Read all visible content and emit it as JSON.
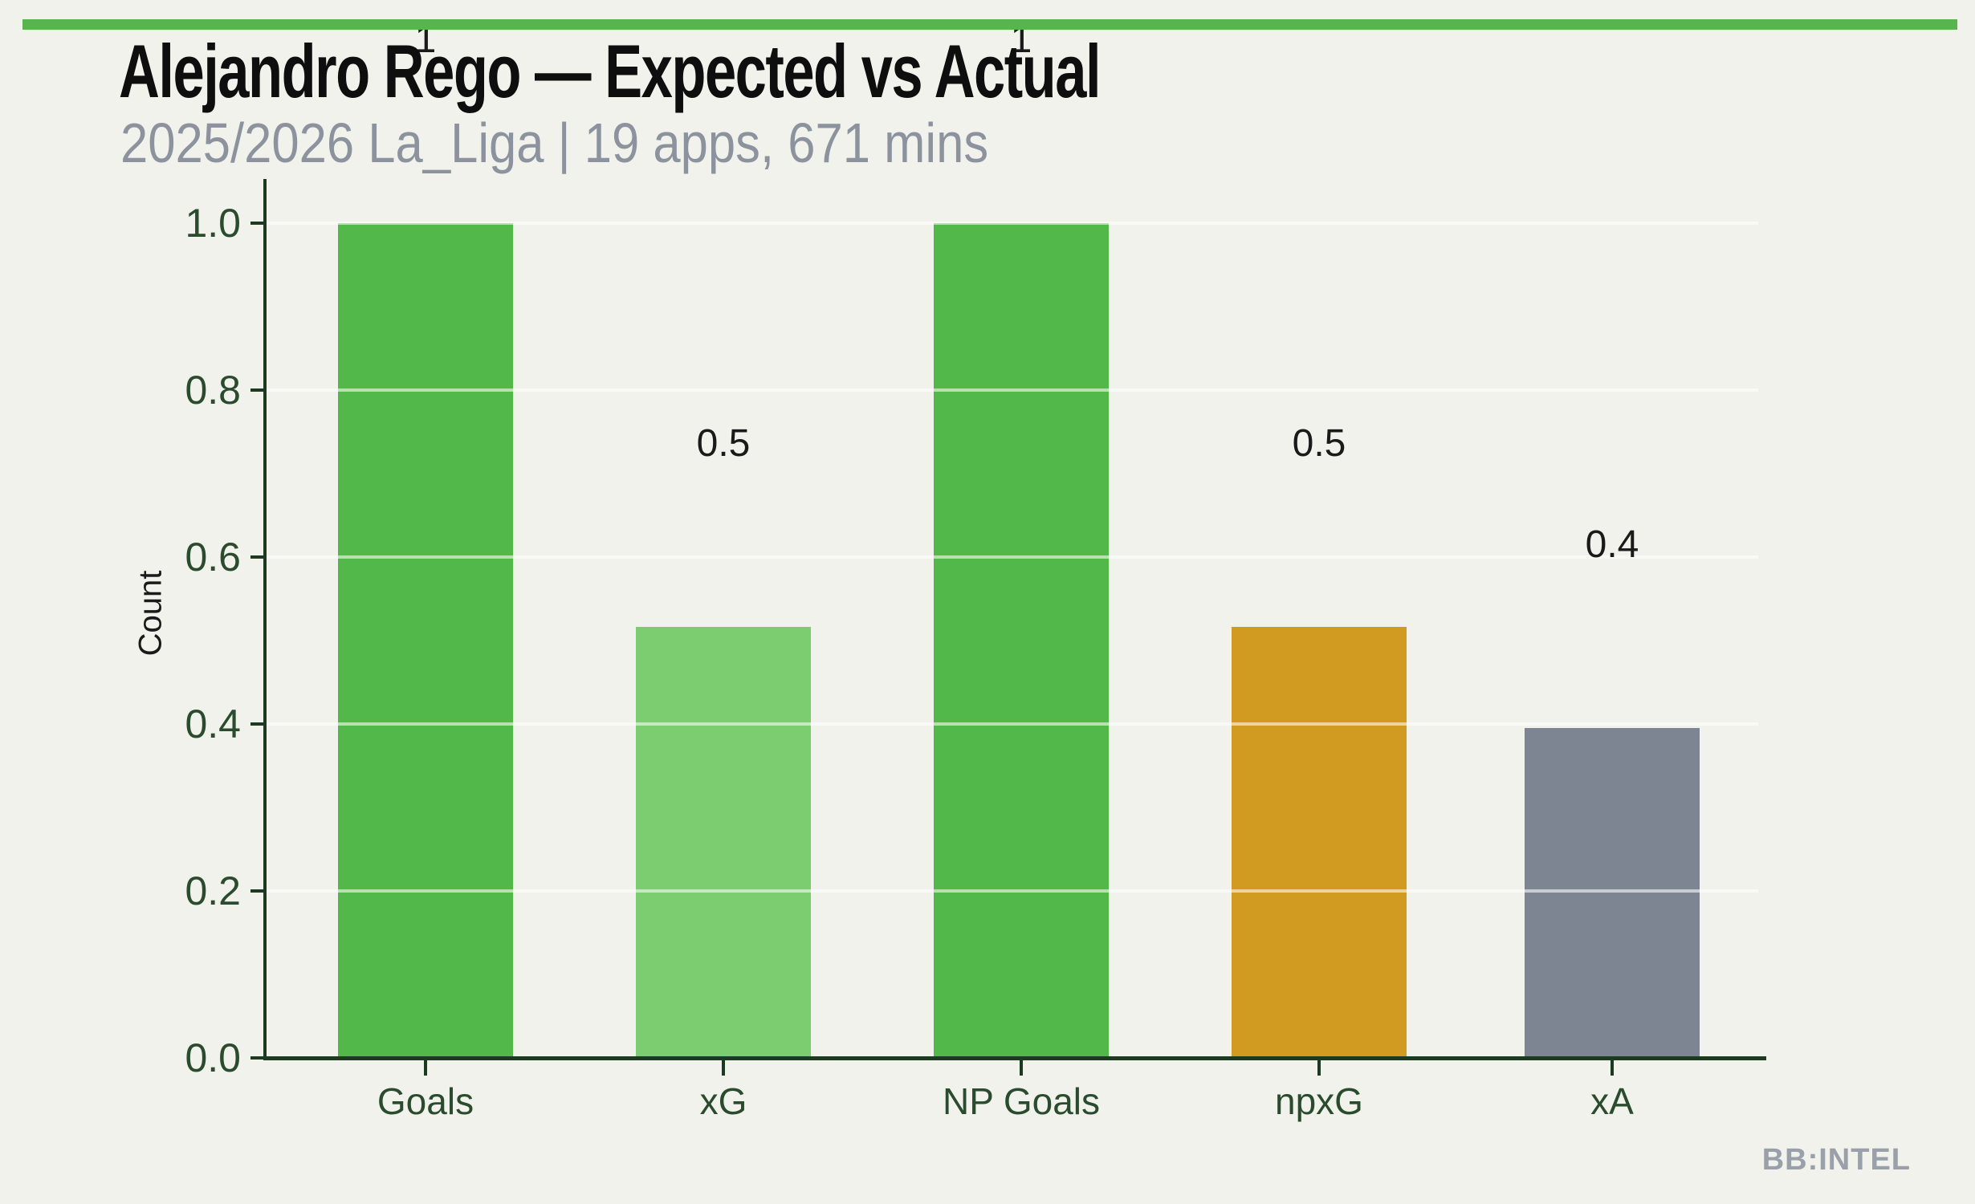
{
  "header": {
    "title": "Alejandro Rego — Expected vs Actual",
    "subtitle": "2025/2026 La_Liga | 19 apps, 671 mins"
  },
  "watermark": "BB:INTEL",
  "colors": {
    "background": "#f1f2eb",
    "top_stripe": "#58b54e",
    "axis": "#1c3a20",
    "tick_label": "#2a4b2e",
    "value_label": "#1a1a1a",
    "subtitle_gray": "#8d939e",
    "watermark_gray": "#9aa0aa",
    "gridline": "rgba(255,255,255,0.58)"
  },
  "chart_data": {
    "type": "bar",
    "title": "Alejandro Rego — Expected vs Actual",
    "subtitle": "2025/2026 La_Liga | 19 apps, 671 mins",
    "categories": [
      "Goals",
      "xG",
      "NP Goals",
      "npxG",
      "xA"
    ],
    "values": [
      1.0,
      0.516,
      1.0,
      0.516,
      0.395
    ],
    "bar_labels": [
      "1",
      "0.5",
      "1",
      "0.5",
      "0.4"
    ],
    "bar_colors": [
      "#53b84a",
      "#7ccd6f",
      "#53b84a",
      "#d19a21",
      "#7e8592"
    ],
    "xlabel": "",
    "ylabel": "Count",
    "ylim": [
      0.0,
      1.0
    ],
    "ytick_labels": [
      "0.0",
      "0.2",
      "0.4",
      "0.6",
      "0.8",
      "1.0"
    ],
    "grid": "horizontal gridlines at y ticks, drawn light over bars",
    "legend": "none"
  }
}
